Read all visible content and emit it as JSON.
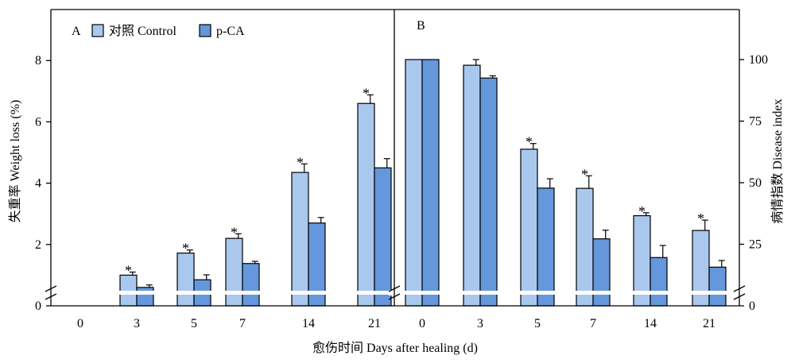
{
  "chart_data": {
    "type": "bar",
    "colors": {
      "control": "#aac8ee",
      "pca": "#6497dc",
      "axis": "#000000",
      "break": "#ffffff"
    },
    "legend": {
      "placement": "top-left",
      "entries": [
        "对照 Control",
        "p-CA"
      ]
    },
    "xlabel": "愈伤时间 Days after healing (d)",
    "panels": [
      {
        "letter": "A",
        "axis_side": "left",
        "ylabel": "失重率 Weight loss (%)",
        "ylim": [
          0,
          9.3
        ],
        "yticks": [
          0,
          2,
          4,
          6,
          8
        ],
        "categories": [
          "0",
          "3",
          "5",
          "7",
          "14",
          "21"
        ],
        "series": [
          {
            "name": "对照 Control",
            "values": [
              0,
              1.0,
              1.72,
              2.2,
              4.35,
              6.6
            ],
            "errors": [
              0,
              0.1,
              0.1,
              0.15,
              0.28,
              0.28
            ]
          },
          {
            "name": "p-CA",
            "values": [
              0,
              0.6,
              0.85,
              1.38,
              2.7,
              4.5
            ],
            "errors": [
              0,
              0.08,
              0.16,
              0.07,
              0.18,
              0.3
            ]
          }
        ],
        "significant": [
          false,
          true,
          true,
          true,
          true,
          true
        ],
        "star": "*"
      },
      {
        "letter": "B",
        "axis_side": "right",
        "ylabel": "病情指数 Disease index",
        "ylim": [
          0,
          116
        ],
        "yticks": [
          0,
          25,
          50,
          75,
          100
        ],
        "categories": [
          "0",
          "3",
          "5",
          "7",
          "14",
          "21"
        ],
        "series": [
          {
            "name": "对照 Control",
            "values": [
              100,
              97.7,
              63.6,
              47.7,
              36.6,
              30.6
            ],
            "errors": [
              0,
              2.3,
              2.3,
              5.1,
              1.2,
              4.2
            ]
          },
          {
            "name": "p-CA",
            "values": [
              100,
              92.5,
              47.8,
              27.2,
              19.6,
              15.7
            ],
            "errors": [
              0,
              0.9,
              3.8,
              3.5,
              4.9,
              2.7
            ]
          }
        ],
        "significant": [
          false,
          false,
          true,
          true,
          true,
          true
        ],
        "star": "*"
      }
    ]
  }
}
